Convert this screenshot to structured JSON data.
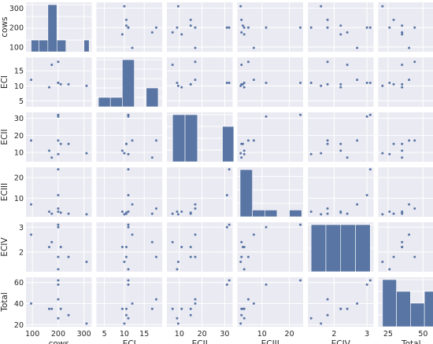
{
  "chart_data": {
    "type": "scatter",
    "variables": [
      "cows",
      "ECI",
      "ECII",
      "ECIII",
      "ECIV",
      "Total"
    ],
    "observations": [
      {
        "cows": 95,
        "ECI": 12,
        "ECII": 17,
        "ECIII": 7,
        "ECIV": 2.7,
        "Total": 40
      },
      {
        "cows": 200,
        "ECI": 11,
        "ECII": 9,
        "ECIII": 3.5,
        "ECIV": 1.3,
        "Total": 26
      },
      {
        "cows": 165,
        "ECI": 9.5,
        "ECII": 11,
        "ECIII": 3.5,
        "ECIV": 2.2,
        "Total": 35
      },
      {
        "cows": 175,
        "ECI": 17,
        "ECII": 7,
        "ECIII": 2.5,
        "ECIV": 2.4,
        "Total": 35
      },
      {
        "cows": 200,
        "ECI": 18,
        "ECII": 17,
        "ECIII": 5,
        "ECIV": 1.8,
        "Total": 44
      },
      {
        "cows": 200,
        "ECI": 11,
        "ECII": 32,
        "ECIII": 24,
        "ECIV": 3.1,
        "Total": 62
      },
      {
        "cows": 200,
        "ECI": 11,
        "ECII": 31,
        "ECIII": 11.5,
        "ECIV": 3.0,
        "Total": 58
      },
      {
        "cows": 210,
        "ECI": 10.5,
        "ECII": 15,
        "ECIII": 3,
        "ECIV": 2.2,
        "Total": 35
      },
      {
        "cows": 240,
        "ECI": 10.5,
        "ECII": 15,
        "ECIII": 2.5,
        "ECIV": 1.8,
        "Total": 29
      },
      {
        "cows": 310,
        "ECI": 10,
        "ECII": 9.5,
        "ECIII": 2.2,
        "ECIV": 1.6,
        "Total": 21
      }
    ],
    "ticks": {
      "cows": [
        100,
        200,
        300
      ],
      "ECI": [
        5,
        10,
        15
      ],
      "ECII": [
        10,
        20,
        30
      ],
      "ECIII": [
        10,
        20
      ],
      "ECIV": [
        2,
        3
      ],
      "Total": [
        25,
        50
      ]
    },
    "y_ticks": {
      "cows": [
        100,
        200,
        300
      ],
      "ECI": [
        5,
        10,
        15
      ],
      "ECII": [
        10,
        20,
        30
      ],
      "ECIII": [
        10,
        20
      ],
      "ECIV": [
        2,
        3
      ],
      "Total": [
        20,
        40,
        60
      ]
    },
    "ranges": {
      "cows": [
        75,
        330
      ],
      "ECI": [
        3.0,
        19.5
      ],
      "ECII": [
        4.5,
        33.5
      ],
      "ECIII": [
        1.0,
        25.0
      ],
      "ECIV": [
        1.2,
        3.2
      ],
      "Total": [
        18,
        65
      ]
    },
    "histograms": {
      "cows": {
        "edges": [
          95,
          125,
          160,
          195,
          230,
          265,
          300,
          320
        ],
        "counts": [
          1,
          1,
          4,
          1,
          0,
          0,
          1
        ]
      },
      "ECI": {
        "edges": [
          3.5,
          6.5,
          9.5,
          12.5,
          15.5,
          18.5
        ],
        "counts": [
          1,
          1,
          5,
          0,
          2
        ]
      },
      "ECII": {
        "edges": [
          7,
          12.5,
          18,
          23.5,
          29,
          34
        ],
        "counts": [
          4,
          4,
          0,
          0,
          3
        ]
      },
      "ECIII": {
        "edges": [
          2,
          6.5,
          11,
          15.5,
          20,
          24.5
        ],
        "counts": [
          7,
          1,
          1,
          0,
          1
        ]
      },
      "ECIV": {
        "edges": [
          1.3,
          1.75,
          2.2,
          2.65,
          3.1
        ],
        "counts": [
          2,
          2,
          2,
          2
        ]
      },
      "Total": {
        "edges": [
          21,
          31,
          41,
          51,
          63
        ],
        "counts": [
          4,
          3,
          2,
          3
        ]
      }
    },
    "color": "#5975a4",
    "background": "#eaeaf2",
    "grid": true
  }
}
